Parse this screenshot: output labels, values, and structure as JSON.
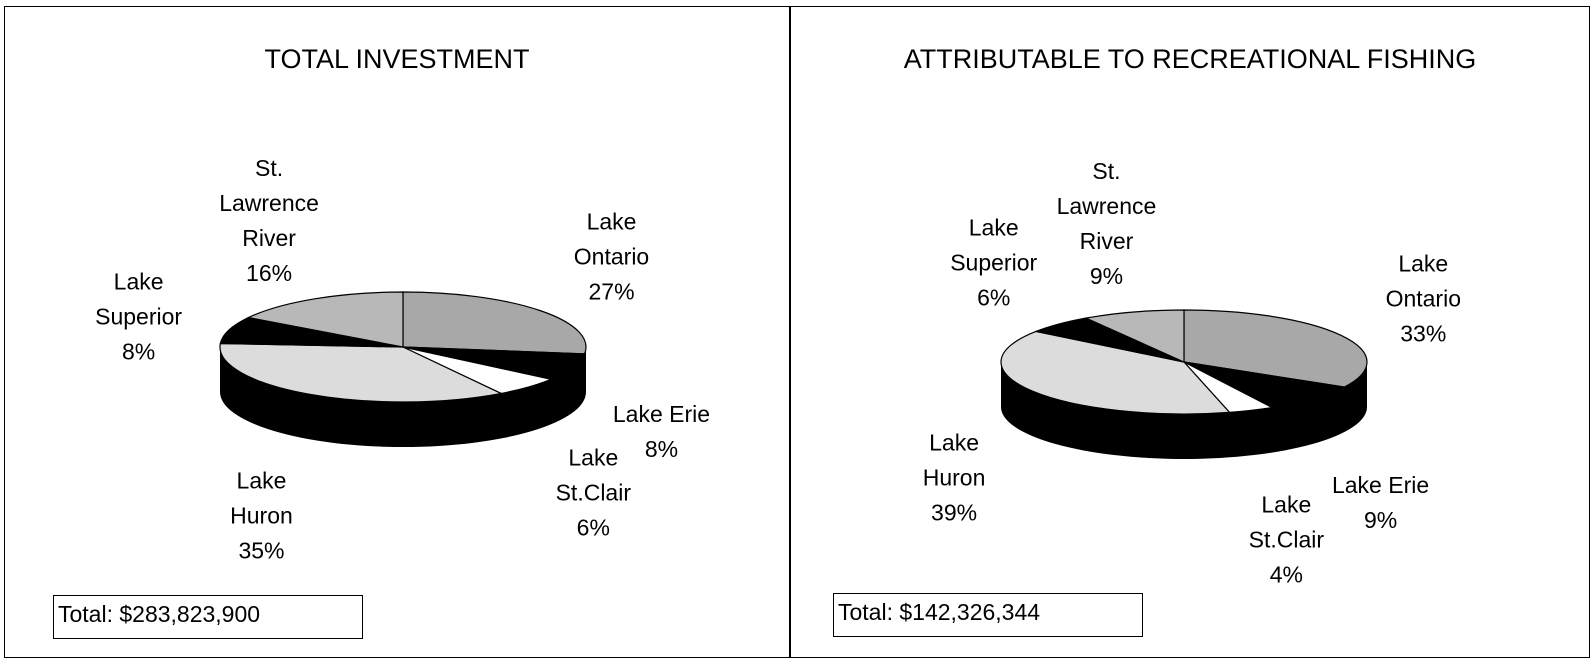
{
  "chart_data": [
    {
      "type": "pie",
      "title": "TOTAL INVESTMENT",
      "categories": [
        "Lake Ontario",
        "Lake Erie",
        "Lake St.Clair",
        "Lake Huron",
        "Lake Superior",
        "St. Lawrence River"
      ],
      "values": [
        27,
        8,
        6,
        35,
        8,
        16
      ],
      "value_labels": [
        "27%",
        "8%",
        "6%",
        "35%",
        "8%",
        "16%"
      ],
      "colors": [
        "#a8a8a8",
        "#000000",
        "#ffffff",
        "#dcdcdc",
        "#000000",
        "#b8b8b8"
      ],
      "total": "Total: $283,823,900"
    },
    {
      "type": "pie",
      "title": "ATTRIBUTABLE TO RECREATIONAL FISHING",
      "categories": [
        "Lake Ontario",
        "Lake Erie",
        "Lake St.Clair",
        "Lake Huron",
        "Lake Superior",
        "St. Lawrence River"
      ],
      "values": [
        33,
        9,
        4,
        39,
        6,
        9
      ],
      "value_labels": [
        "33%",
        "9%",
        "4%",
        "39%",
        "6%",
        "9%"
      ],
      "colors": [
        "#a8a8a8",
        "#000000",
        "#ffffff",
        "#dcdcdc",
        "#000000",
        "#b8b8b8"
      ],
      "total": "Total: $142,326,344"
    }
  ]
}
